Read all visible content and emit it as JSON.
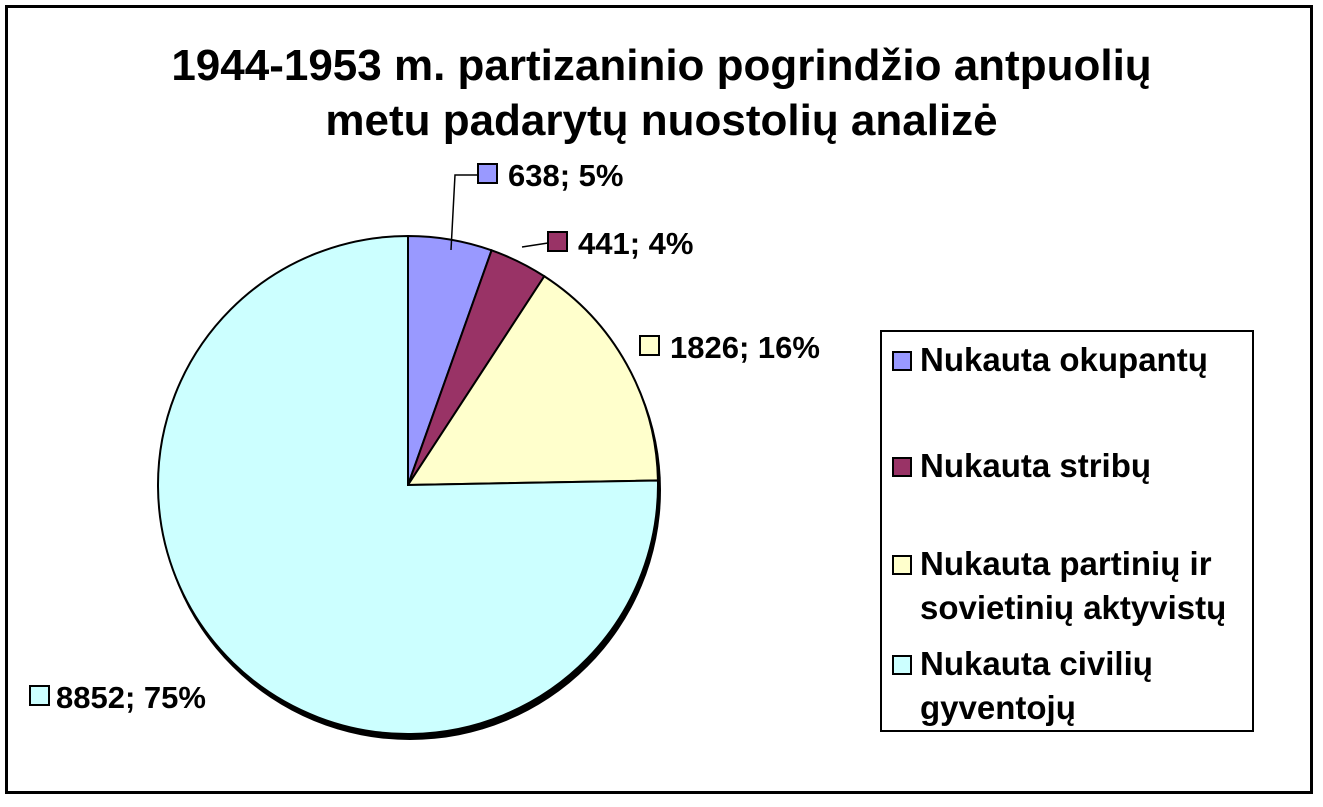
{
  "chart_data": {
    "type": "pie",
    "title_lines": [
      "1944-1953 m. partizaninio pogrindžio antpuolių",
      "metu padarytų nuostolių analizė"
    ],
    "legend_placement": "right",
    "slices": [
      {
        "name": "Nukauta okupantų",
        "value": 638,
        "percent": "5%",
        "label": "638; 5%",
        "color": "#9999ff"
      },
      {
        "name": "Nukauta stribų",
        "value": 441,
        "percent": "4%",
        "label": "441; 4%",
        "color": "#993366"
      },
      {
        "name": "Nukauta partinių ir sovietinių aktyvistų",
        "value": 1826,
        "percent": "16%",
        "label": "1826; 16%",
        "color": "#ffffcc"
      },
      {
        "name": "Nukauta civilių gyventojų",
        "value": 8852,
        "percent": "75%",
        "label": "8852; 75%",
        "color": "#ccffff"
      }
    ],
    "legend_lines": [
      [
        "Nukauta okupantų"
      ],
      [
        "Nukauta stribų"
      ],
      [
        "Nukauta partinių ir",
        "sovietinių aktyvistų"
      ],
      [
        "Nukauta civilių",
        "gyventojų"
      ]
    ]
  }
}
